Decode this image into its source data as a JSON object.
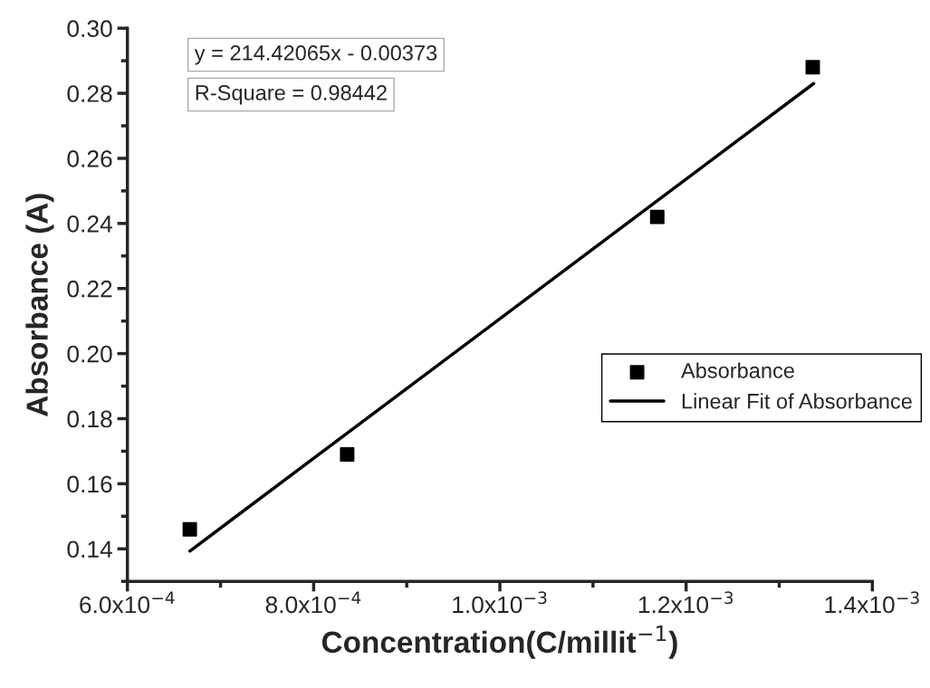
{
  "chart_data": {
    "type": "scatter",
    "xlabel": "Concentration(C/millit$^{−1}$)",
    "ylabel": "Absorbance (A)",
    "series": [
      {
        "name": "Absorbance",
        "color": "#000000",
        "marker": "square",
        "x": [
          0.000667,
          0.000836,
          0.001169,
          0.001336
        ],
        "values": [
          0.146,
          0.169,
          0.242,
          0.288
        ]
      },
      {
        "name": "Linear Fit of Absorbance",
        "type": "line",
        "color": "#000000",
        "marker": "none",
        "line_style": "solid",
        "x": [
          0.000667,
          0.001337
        ],
        "values": [
          0.1393,
          0.283
        ]
      }
    ],
    "xlim": [
      0.0006,
      0.0014
    ],
    "ylim": [
      0.13,
      0.3
    ],
    "xticks": [
      {
        "value": 0.0006,
        "label": "6.0x10$^{−4}$"
      },
      {
        "value": 0.0008,
        "label": "8.0x10$^{−4}$"
      },
      {
        "value": 0.001,
        "label": "1.0x10$^{−3}$"
      },
      {
        "value": 0.0012,
        "label": "1.2x10$^{−3}$"
      },
      {
        "value": 0.0014,
        "label": "1.4x10$^{−3}$"
      }
    ],
    "yticks": [
      {
        "value": 0.14,
        "label": "0.14"
      },
      {
        "value": 0.16,
        "label": "0.16"
      },
      {
        "value": 0.18,
        "label": "0.18"
      },
      {
        "value": 0.2,
        "label": "0.20"
      },
      {
        "value": 0.22,
        "label": "0.22"
      },
      {
        "value": 0.24,
        "label": "0.24"
      },
      {
        "value": 0.26,
        "label": "0.26"
      },
      {
        "value": 0.28,
        "label": "0.28"
      },
      {
        "value": 0.3,
        "label": "0.30"
      }
    ],
    "annotations": [
      "y = 214.42065x - 0.00373",
      "R-Square = 0.98442"
    ],
    "grid": false,
    "legend": "right"
  }
}
